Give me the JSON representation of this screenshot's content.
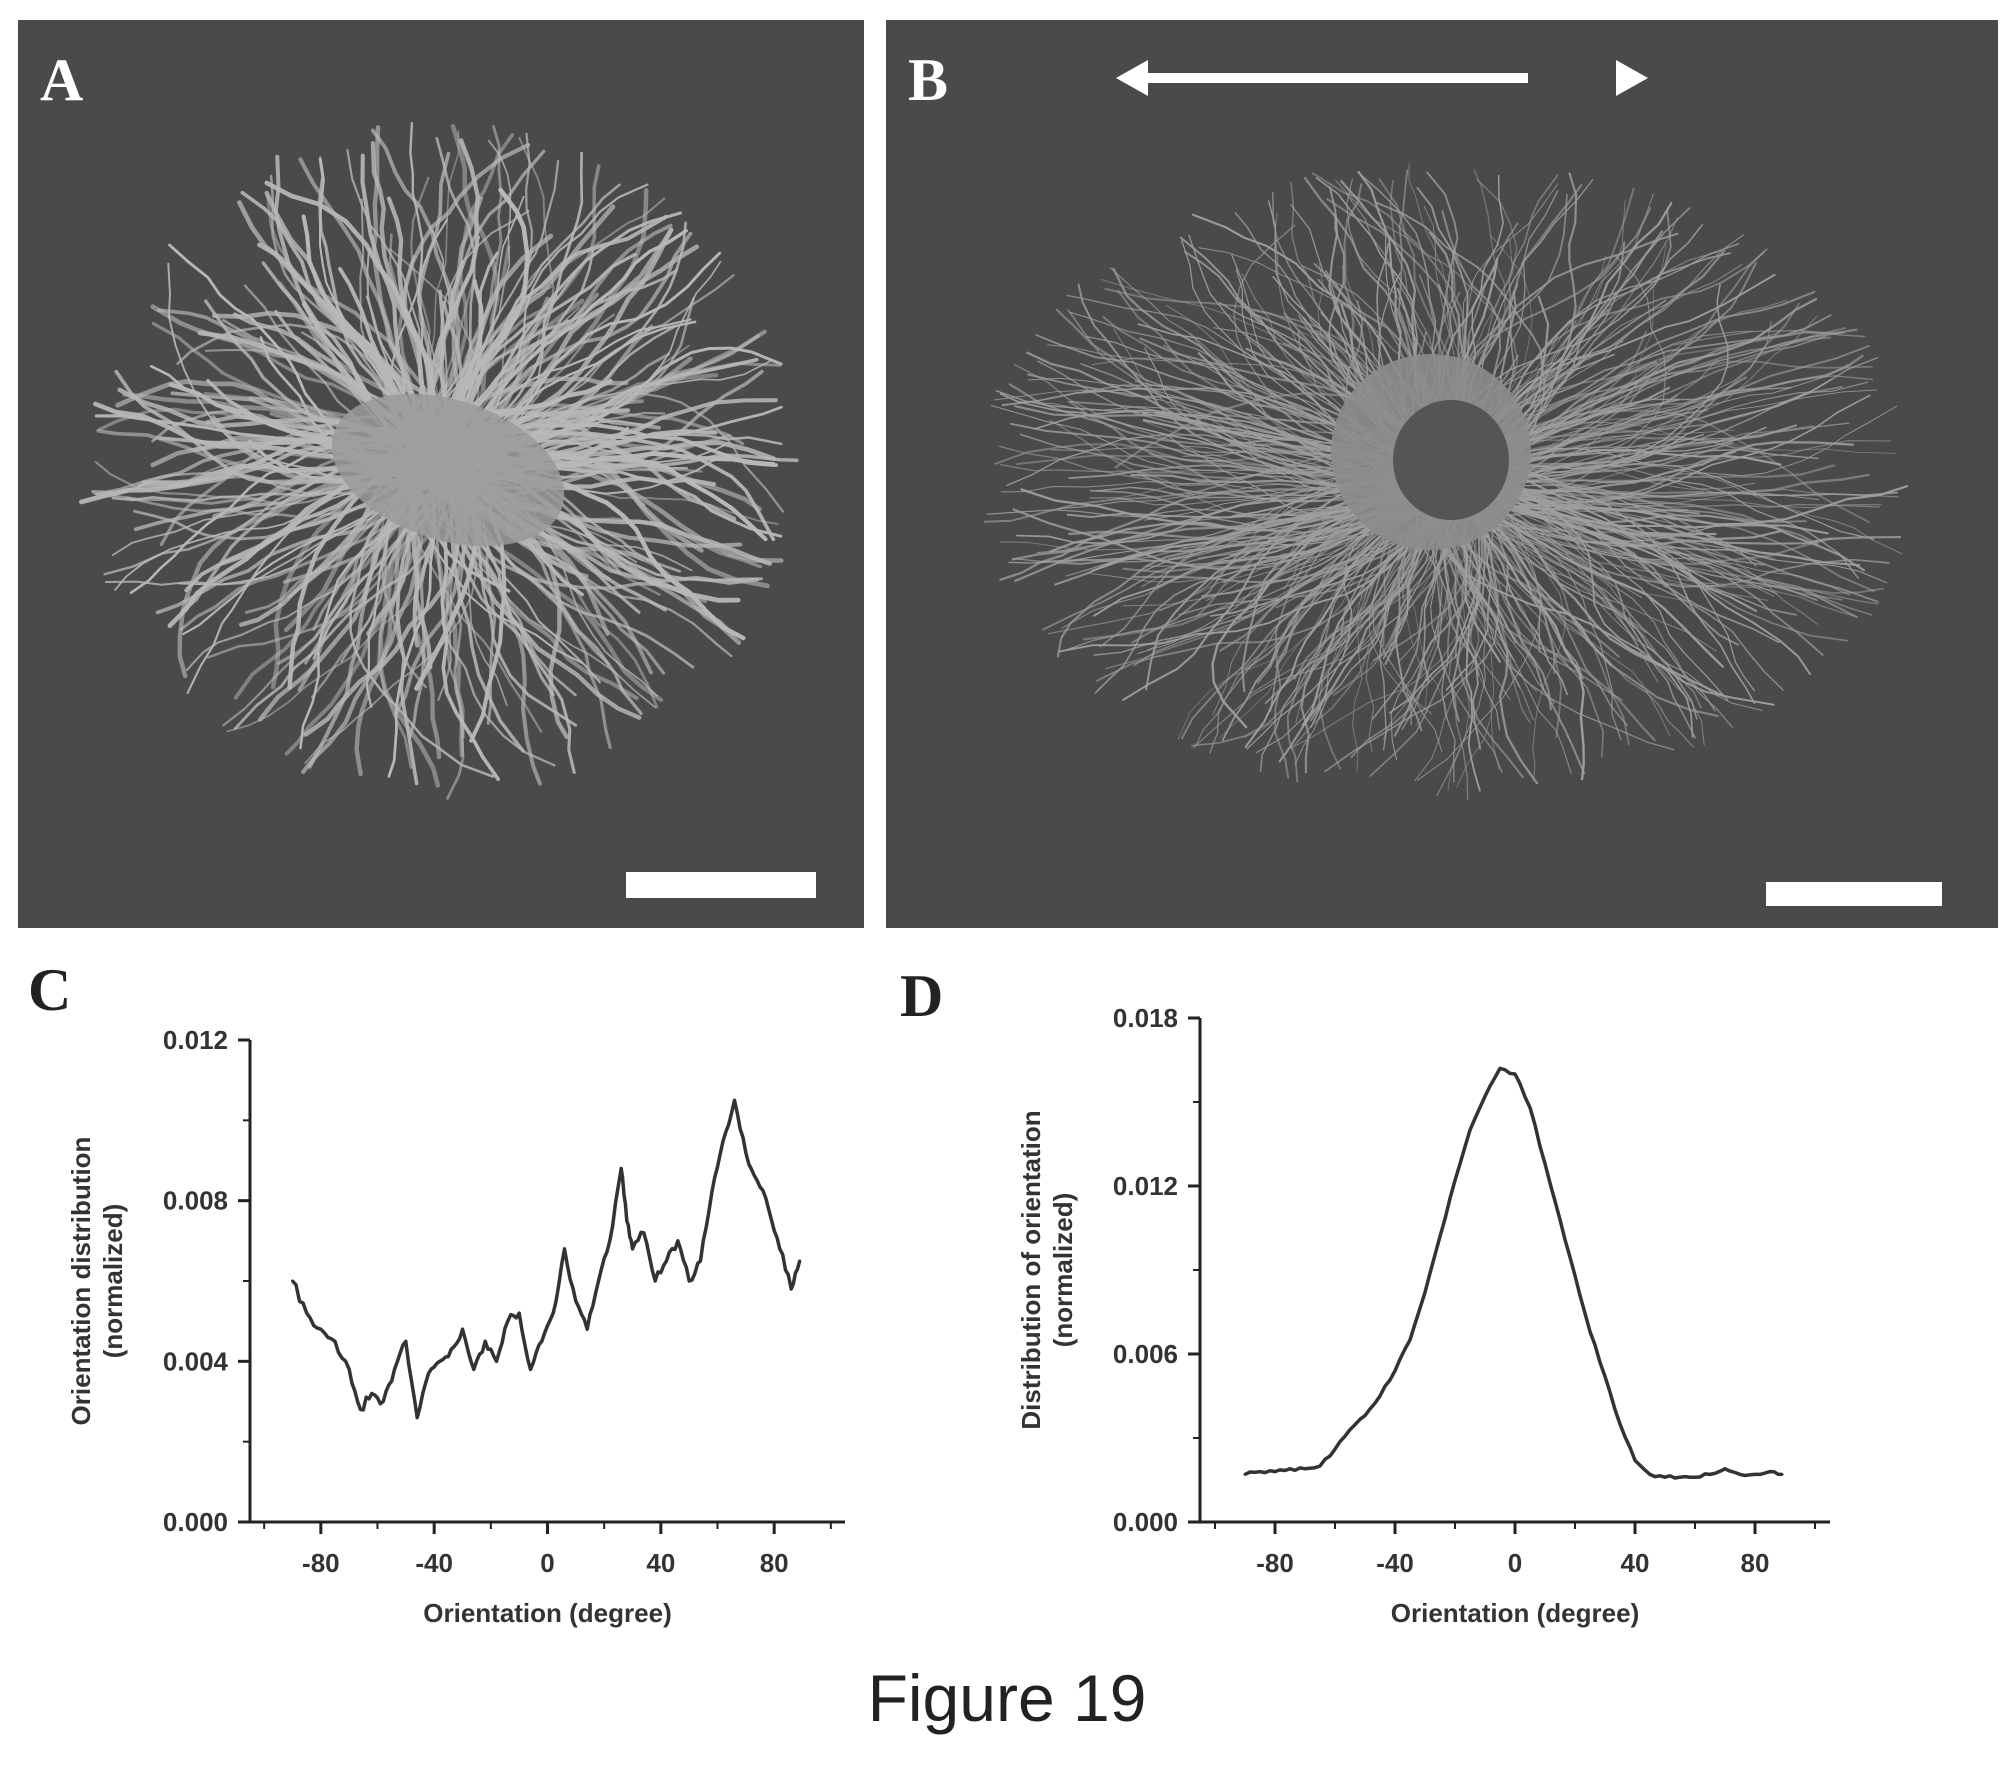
{
  "panels": {
    "a": {
      "label": "A"
    },
    "b": {
      "label": "B"
    },
    "c": {
      "label": "C"
    },
    "d": {
      "label": "D"
    }
  },
  "caption": "Figure 19",
  "colors": {
    "micrograph_bg": "#4a4a4a",
    "filaments": "#b8b8b8",
    "curve": "#333333"
  },
  "chart_data": [
    {
      "panel": "C",
      "type": "line",
      "ylabel": "Orientation distribution (normalized)",
      "ylabel_lines": [
        "Orientation distribution",
        "(normalized)"
      ],
      "xlabel": "Orientation (degree)",
      "xlim": [
        -105,
        105
      ],
      "ylim": [
        0,
        0.012
      ],
      "xticks": [
        -80,
        -40,
        0,
        40,
        80
      ],
      "yticks": [
        0.0,
        0.004,
        0.008,
        0.012
      ],
      "xtick_labels": [
        "-80",
        "-40",
        "0",
        "40",
        "80"
      ],
      "ytick_labels": [
        "0.000",
        "0.004",
        "0.008",
        "0.012"
      ],
      "grid": false,
      "x": [
        -90,
        -85,
        -80,
        -75,
        -70,
        -66,
        -62,
        -58,
        -54,
        -50,
        -46,
        -42,
        -38,
        -34,
        -30,
        -26,
        -22,
        -18,
        -14,
        -10,
        -6,
        -2,
        2,
        6,
        10,
        14,
        18,
        22,
        26,
        28,
        30,
        34,
        38,
        42,
        46,
        50,
        54,
        58,
        62,
        66,
        70,
        74,
        78,
        82,
        86,
        89
      ],
      "y": [
        0.006,
        0.0052,
        0.0048,
        0.0045,
        0.0038,
        0.0028,
        0.0032,
        0.003,
        0.0038,
        0.0045,
        0.0026,
        0.0037,
        0.004,
        0.0043,
        0.0048,
        0.0038,
        0.0045,
        0.004,
        0.005,
        0.0052,
        0.0038,
        0.0045,
        0.0052,
        0.0068,
        0.0055,
        0.0048,
        0.006,
        0.007,
        0.0088,
        0.0075,
        0.0068,
        0.0072,
        0.006,
        0.0065,
        0.007,
        0.006,
        0.0065,
        0.0082,
        0.0095,
        0.0105,
        0.0092,
        0.0085,
        0.0078,
        0.0068,
        0.0058,
        0.0065
      ]
    },
    {
      "panel": "D",
      "type": "line",
      "ylabel": "Distribution of orientation (normalized)",
      "ylabel_lines": [
        "Distribution of orientation",
        "(normalized)"
      ],
      "xlabel": "Orientation (degree)",
      "xlim": [
        -105,
        105
      ],
      "ylim": [
        0,
        0.018
      ],
      "xticks": [
        -80,
        -40,
        0,
        40,
        80
      ],
      "yticks": [
        0.0,
        0.006,
        0.012,
        0.018
      ],
      "xtick_labels": [
        "-80",
        "-40",
        "0",
        "40",
        "80"
      ],
      "ytick_labels": [
        "0.000",
        "0.006",
        "0.012",
        "0.018"
      ],
      "grid": false,
      "x": [
        -90,
        -85,
        -80,
        -75,
        -70,
        -65,
        -60,
        -55,
        -50,
        -45,
        -40,
        -35,
        -30,
        -25,
        -20,
        -15,
        -10,
        -5,
        0,
        5,
        10,
        15,
        20,
        25,
        30,
        35,
        40,
        45,
        50,
        55,
        60,
        65,
        70,
        75,
        80,
        85,
        89
      ],
      "y": [
        0.0017,
        0.0018,
        0.0018,
        0.0019,
        0.0019,
        0.002,
        0.0026,
        0.0033,
        0.0038,
        0.0045,
        0.0054,
        0.0065,
        0.0082,
        0.0102,
        0.0122,
        0.014,
        0.0152,
        0.0162,
        0.016,
        0.0148,
        0.0128,
        0.0108,
        0.0088,
        0.0068,
        0.0052,
        0.0035,
        0.0022,
        0.0017,
        0.0016,
        0.0016,
        0.0016,
        0.0017,
        0.0019,
        0.0017,
        0.0017,
        0.0018,
        0.0017
      ]
    }
  ]
}
